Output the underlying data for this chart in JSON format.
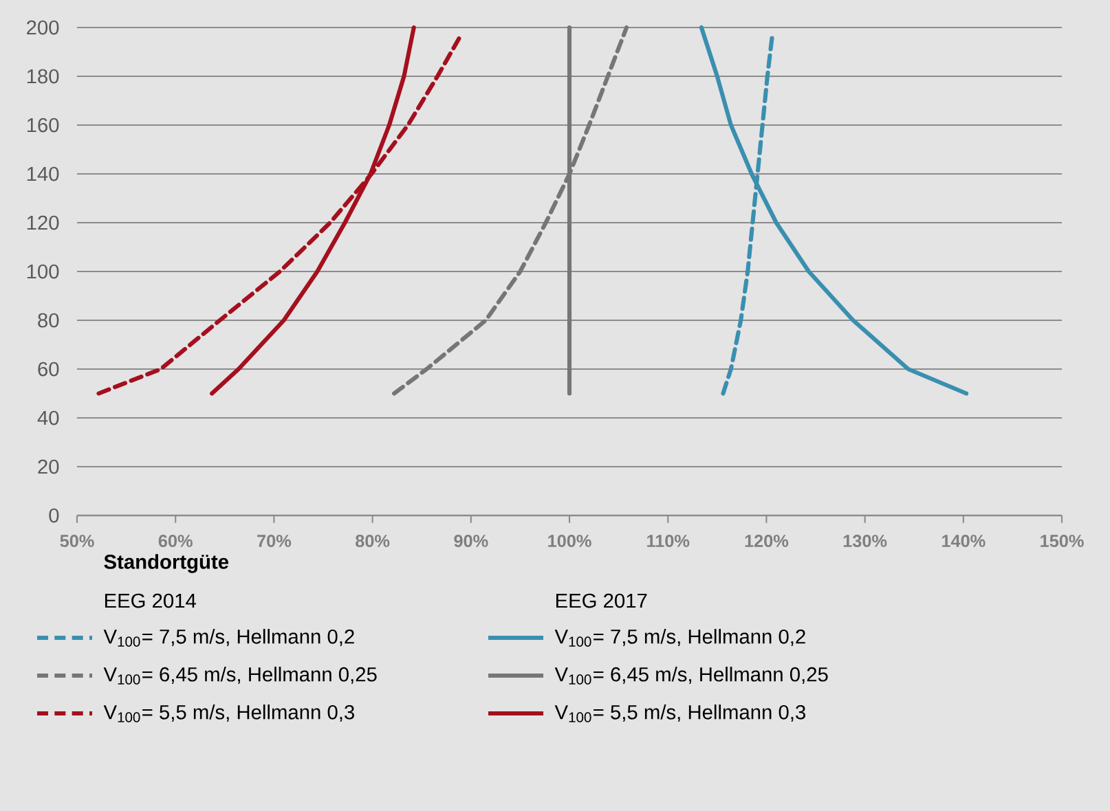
{
  "chart_data": {
    "type": "line",
    "legend_title": "**Standortgüte**",
    "annotations": [
      "EEG 2014",
      "EEG 2017"
    ],
    "xlim": [
      50,
      150
    ],
    "xticks": [
      {
        "value": 50,
        "label": "50%"
      },
      {
        "value": 60,
        "label": "60%"
      },
      {
        "value": 70,
        "label": "70%"
      },
      {
        "value": 80,
        "label": "80%"
      },
      {
        "value": 90,
        "label": "90%"
      },
      {
        "value": 100,
        "label": "100%"
      },
      {
        "value": 110,
        "label": "110%"
      },
      {
        "value": 120,
        "label": "120%"
      },
      {
        "value": 130,
        "label": "130%"
      },
      {
        "value": 140,
        "label": "140%"
      },
      {
        "value": 150,
        "label": "150%"
      }
    ],
    "ylim": [
      0,
      200
    ],
    "yticks": [
      0,
      20,
      40,
      60,
      80,
      100,
      120,
      140,
      160,
      180,
      200
    ],
    "grid": "y",
    "legend": "bottom",
    "series": [
      {
        "name": "V$_{100}$= 7,5 m/s, Hellmann 0,2",
        "color": "#3a8fb0",
        "line_style": "dashed",
        "x": [
          115.6,
          116.4,
          117.4,
          118.1,
          118.6,
          119.1,
          119.6,
          120.1,
          120.6
        ],
        "values": [
          50,
          60,
          80,
          100,
          120,
          140,
          160,
          180,
          197
        ]
      },
      {
        "name": "V$_{100}$= 6,45 m/s, Hellmann 0,25",
        "color": "#767676",
        "line_style": "dashed",
        "x": [
          82.2,
          85.5,
          91.5,
          95.0,
          97.6,
          100.0,
          102.0,
          103.9,
          105.8
        ],
        "values": [
          50,
          60,
          80,
          100,
          120,
          140,
          160,
          180,
          200
        ]
      },
      {
        "name": "V$_{100}$= 5,5 m/s, Hellmann 0,3",
        "color": "#a50f1e",
        "line_style": "dashed",
        "x": [
          52.2,
          58.5,
          64.5,
          70.6,
          75.7,
          79.9,
          83.6,
          86.6,
          89.0
        ],
        "values": [
          50,
          60,
          80,
          100,
          120,
          140,
          160,
          180,
          197
        ]
      },
      {
        "name": "V$_{100}$= 7,5 m/s, Hellmann 0,2",
        "color": "#3a8fb0",
        "line_style": "solid",
        "x": [
          140.3,
          134.4,
          128.8,
          124.3,
          121.0,
          118.5,
          116.4,
          115.0,
          113.4
        ],
        "values": [
          50,
          60,
          80,
          100,
          120,
          140,
          160,
          180,
          200
        ]
      },
      {
        "name": "V$_{100}$= 6,45 m/s, Hellmann 0,25",
        "color": "#767676",
        "line_style": "solid",
        "x": [
          100,
          100
        ],
        "values": [
          50,
          200
        ]
      },
      {
        "name": "V$_{100}$= 5,5 m/s, Hellmann 0,3",
        "color": "#a50f1e",
        "line_style": "solid",
        "x": [
          63.7,
          66.4,
          71.0,
          74.4,
          77.2,
          79.8,
          81.7,
          83.2,
          84.2
        ],
        "values": [
          50,
          60,
          80,
          100,
          120,
          140,
          160,
          180,
          200
        ]
      }
    ]
  }
}
